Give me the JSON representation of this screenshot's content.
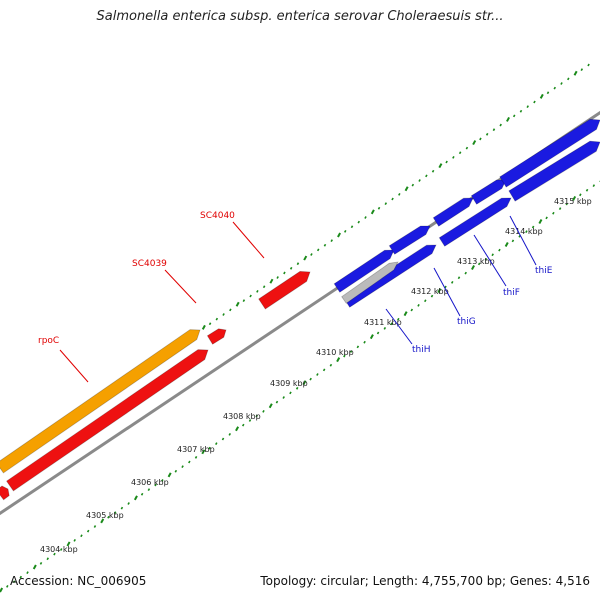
{
  "title": "Salmonella enterica subsp. enterica serovar Choleraesuis str...",
  "footer": {
    "accession": "Accession: NC_006905",
    "summary": "Topology: circular; Length: 4,755,700 bp; Genes: 4,516"
  },
  "colors": {
    "backbone": "#8a8a8a",
    "tick_green": "#1a8a1a",
    "gene_red": "#ee1111",
    "gene_orange": "#f5a000",
    "gene_blue": "#1a1ae0",
    "gene_gray": "#bbbbbb",
    "label_red": "#e00000",
    "label_blue": "#1515c8"
  },
  "ticks": [
    "4304 kbp",
    "4305 kbp",
    "4306 kbp",
    "4307 kbp",
    "4308 kbp",
    "4309 kbp",
    "4310 kbp",
    "4311 kbp",
    "4312 kbp",
    "4313 kbp",
    "4314 kbp",
    "4315 kbp"
  ],
  "genes": [
    {
      "label": "rpoC",
      "color": "orange",
      "strand": "upper"
    },
    {
      "label": "SC4039",
      "color": "red",
      "strand": "lower"
    },
    {
      "label": "SC4040",
      "color": "red",
      "strand": "upper"
    },
    {
      "label": "thiH",
      "color": "gray",
      "strand": "lower"
    },
    {
      "label": "thiG",
      "color": "blue",
      "strand": "lower"
    },
    {
      "label": "thiF",
      "color": "blue",
      "strand": "lower"
    },
    {
      "label": "thiE",
      "color": "blue",
      "strand": "lower"
    }
  ]
}
